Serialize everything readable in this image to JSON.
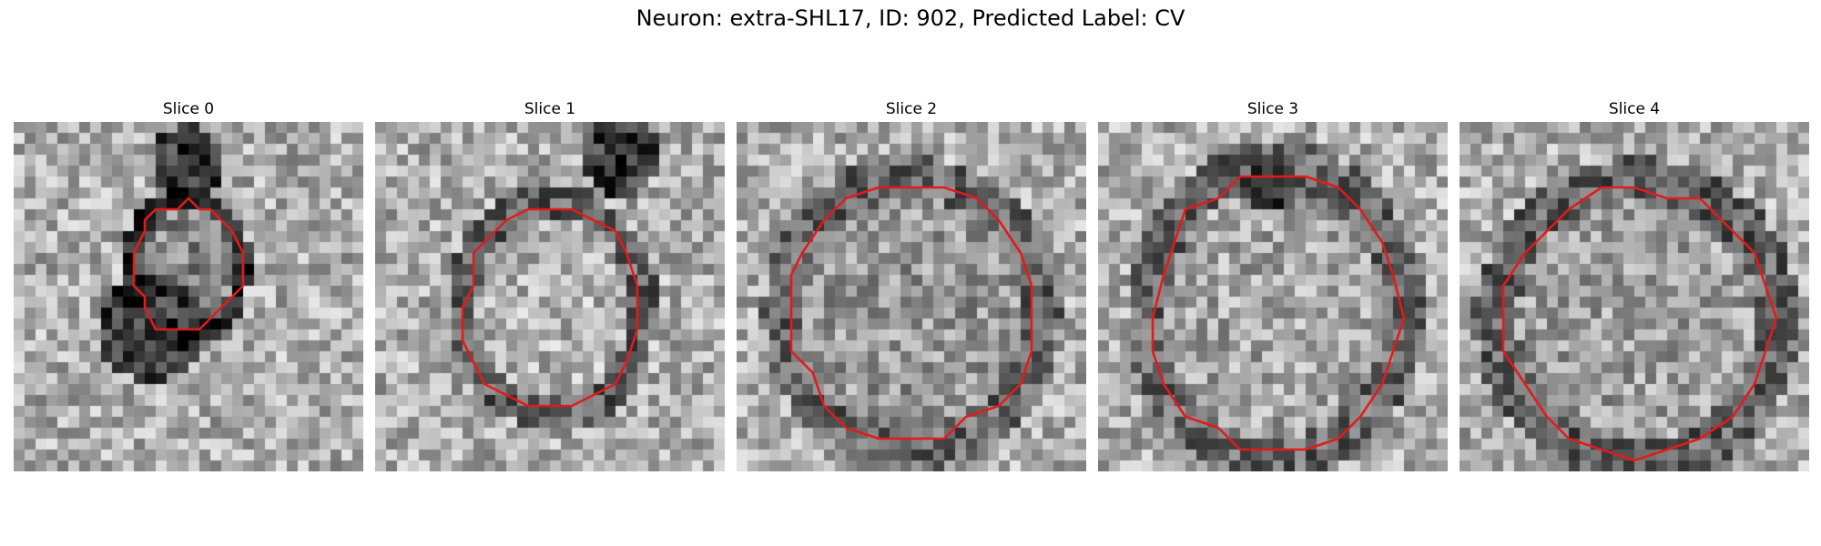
{
  "figure": {
    "title": "Neuron: extra-SHL17, ID: 902, Predicted Label: CV"
  },
  "panels": [
    {
      "title": "Slice 0"
    },
    {
      "title": "Slice 1"
    },
    {
      "title": "Slice 2"
    },
    {
      "title": "Slice 3"
    },
    {
      "title": "Slice 4"
    }
  ],
  "colors": {
    "contour": "#e31a1c",
    "colormap": "gray"
  }
}
